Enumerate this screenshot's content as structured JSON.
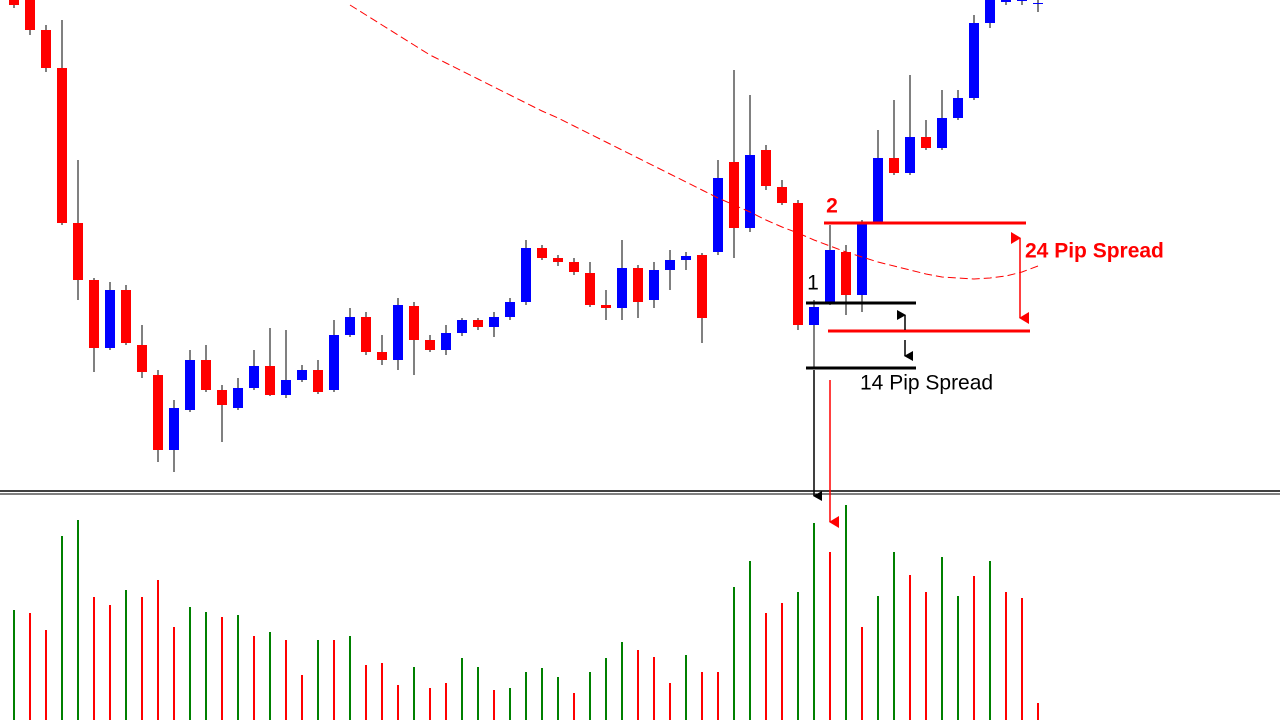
{
  "chart_data": [
    {
      "type": "candlestick",
      "up_color": "#0000ff",
      "down_color": "#ff0000",
      "ylim": [
        230,
        720
      ],
      "open": [
        720,
        720,
        690,
        652,
        497,
        440,
        372,
        430,
        375,
        345,
        270,
        310,
        360,
        330,
        312,
        332,
        354,
        325,
        340,
        350,
        330,
        385,
        403,
        368,
        360,
        414,
        380,
        370,
        387,
        400,
        393,
        403,
        418,
        472,
        462,
        458,
        447,
        415,
        412,
        452,
        420,
        450,
        460,
        465,
        468,
        558,
        492,
        570,
        533,
        517,
        395,
        417,
        468,
        425,
        498,
        562,
        547,
        583,
        572,
        602,
        622,
        697,
        718,
        720,
        717
      ],
      "high": [
        725,
        725,
        695,
        700,
        560,
        442,
        438,
        435,
        395,
        350,
        320,
        370,
        375,
        335,
        342,
        370,
        392,
        390,
        355,
        360,
        400,
        412,
        408,
        385,
        422,
        418,
        385,
        395,
        402,
        402,
        408,
        422,
        480,
        475,
        465,
        462,
        458,
        430,
        480,
        455,
        458,
        470,
        468,
        467,
        560,
        650,
        625,
        575,
        540,
        520,
        420,
        495,
        475,
        500,
        590,
        620,
        645,
        600,
        630,
        630,
        705,
        725,
        725,
        725,
        720
      ],
      "low": [
        712,
        685,
        648,
        495,
        420,
        348,
        370,
        375,
        342,
        258,
        248,
        308,
        328,
        278,
        310,
        330,
        324,
        322,
        338,
        326,
        328,
        383,
        365,
        355,
        350,
        345,
        368,
        365,
        384,
        390,
        383,
        400,
        415,
        460,
        454,
        445,
        413,
        400,
        400,
        402,
        412,
        430,
        450,
        377,
        465,
        462,
        488,
        530,
        515,
        390,
        352,
        415,
        405,
        408,
        496,
        545,
        545,
        570,
        570,
        600,
        620,
        692,
        715,
        715,
        708
      ],
      "close": [
        715,
        690,
        652,
        497,
        440,
        372,
        430,
        377,
        348,
        270,
        312,
        360,
        330,
        315,
        332,
        354,
        325,
        340,
        350,
        328,
        385,
        403,
        368,
        360,
        415,
        380,
        370,
        387,
        400,
        393,
        403,
        418,
        472,
        462,
        458,
        448,
        415,
        412,
        452,
        418,
        450,
        460,
        464,
        402,
        542,
        492,
        565,
        534,
        517,
        395,
        413,
        470,
        425,
        497,
        562,
        547,
        583,
        572,
        602,
        622,
        697,
        720,
        720,
        720,
        717
      ],
      "ma": {
        "color": "#ff0000",
        "values": [
          null,
          null,
          null,
          null,
          null,
          null,
          null,
          null,
          null,
          null,
          null,
          null,
          null,
          null,
          null,
          null,
          null,
          null,
          null,
          null,
          null,
          715,
          705,
          695,
          685,
          675,
          665,
          657,
          649,
          641,
          633,
          625,
          617,
          609,
          602,
          594,
          586,
          578,
          570,
          562,
          554,
          546,
          538,
          530,
          522,
          515,
          508,
          500,
          493,
          487,
          480,
          474,
          468,
          463,
          458,
          454,
          450,
          446,
          443,
          442,
          441,
          442,
          444,
          448,
          454
        ]
      },
      "annotations": [
        "1",
        "2",
        "24 Pip Spread",
        "14 Pip Spread"
      ]
    },
    {
      "type": "bar",
      "ylim": [
        0,
        227
      ],
      "values": [
        110,
        107,
        90,
        184,
        200,
        123,
        115,
        130,
        123,
        140,
        93,
        113,
        108,
        103,
        105,
        84,
        88,
        80,
        45,
        80,
        80,
        84,
        55,
        57,
        35,
        53,
        32,
        37,
        62,
        53,
        30,
        32,
        48,
        52,
        43,
        27,
        48,
        62,
        78,
        70,
        63,
        37,
        65,
        48,
        48,
        133,
        159,
        107,
        117,
        128,
        197,
        168,
        215,
        93,
        124,
        168,
        145,
        128,
        163,
        124,
        144,
        159,
        128,
        122,
        17
      ],
      "colors": [
        "green",
        "red",
        "red",
        "green",
        "green",
        "red",
        "red",
        "green",
        "red",
        "red",
        "red",
        "green",
        "green",
        "red",
        "green",
        "red",
        "green",
        "red",
        "red",
        "green",
        "red",
        "green",
        "red",
        "red",
        "red",
        "green",
        "red",
        "red",
        "green",
        "green",
        "red",
        "green",
        "green",
        "green",
        "green",
        "red",
        "green",
        "green",
        "green",
        "red",
        "red",
        "red",
        "green",
        "red",
        "red",
        "green",
        "green",
        "red",
        "red",
        "green",
        "green",
        "red",
        "green",
        "red",
        "green",
        "green",
        "red",
        "red",
        "green",
        "green",
        "red",
        "green",
        "red",
        "red",
        "red"
      ]
    }
  ]
}
